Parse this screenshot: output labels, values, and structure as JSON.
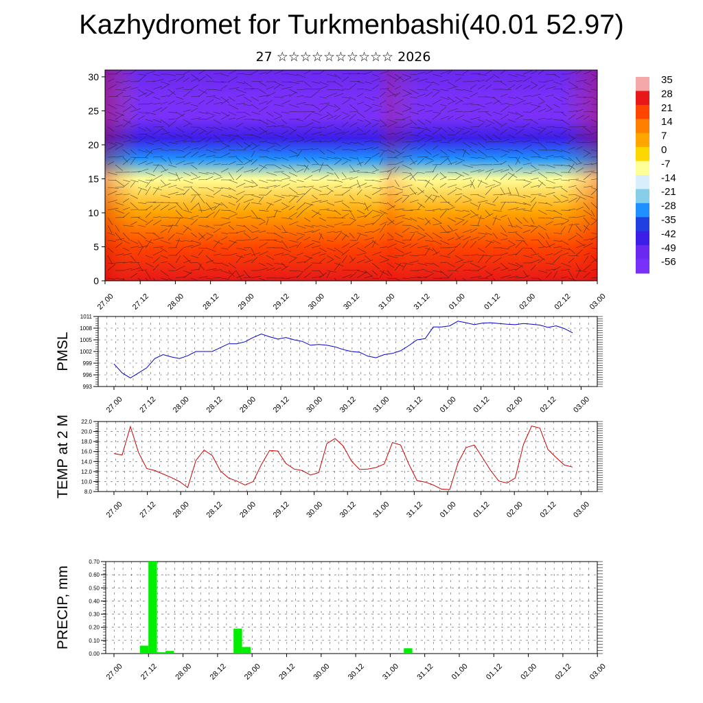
{
  "header": {
    "title": "Kazhydromet for Turkmenbashi(40.01 52.97)",
    "subtitle": "27 ☆☆☆☆☆☆☆☆☆☆ 2026"
  },
  "colors": {
    "pmsl_line": "#0000cc",
    "temp_line": "#cc0000",
    "precip_bar": "#00ee00",
    "grid": "#555555"
  },
  "chart_data": [
    {
      "type": "heatmap",
      "name": "upper-air-temperature-wind",
      "title": "",
      "ylabel": "",
      "x_tick_labels": [
        "27.00",
        "27.12",
        "28.00",
        "28.12",
        "29.00",
        "29.12",
        "30.00",
        "30.12",
        "31.00",
        "31.12",
        "01.00",
        "01.12",
        "02.00",
        "02.12",
        "03.00"
      ],
      "y_ticks": [
        0,
        5,
        10,
        15,
        20,
        25,
        30
      ],
      "ylim": [
        0,
        31
      ],
      "colorbar_labels": [
        "35",
        "28",
        "21",
        "14",
        "7",
        "0",
        "-7",
        "-14",
        "-21",
        "-28",
        "-35",
        "-42",
        "-49",
        "-56"
      ],
      "colorbar_colors": [
        "#f4a8a8",
        "#e81818",
        "#ff4500",
        "#ff7f00",
        "#ffa500",
        "#ffd700",
        "#ffff99",
        "#d8eefc",
        "#87ceeb",
        "#1e90ff",
        "#2040e0",
        "#3c1ee8",
        "#6a28f0",
        "#7a30f8"
      ],
      "vertical_profile": [
        {
          "level": 0,
          "value": 24
        },
        {
          "level": 5,
          "value": 18
        },
        {
          "level": 10,
          "value": 8
        },
        {
          "level": 15,
          "value": -8
        },
        {
          "level": 18,
          "value": -32
        },
        {
          "level": 21,
          "value": -48
        },
        {
          "level": 24,
          "value": -62
        },
        {
          "level": 27,
          "value": -60
        },
        {
          "level": 31,
          "value": -56
        }
      ]
    },
    {
      "type": "line",
      "name": "pmsl",
      "ylabel": "PMSL",
      "x_tick_labels": [
        "27.00",
        "27.12",
        "28.00",
        "28.12",
        "29.00",
        "29.12",
        "30.00",
        "30.12",
        "31.00",
        "31.12",
        "01.00",
        "01.12",
        "02.00",
        "02.12",
        "03.00"
      ],
      "y_tick_labels": [
        "1011",
        "1008",
        "1005",
        "1002",
        "999",
        "996",
        "993"
      ],
      "ylim": [
        993,
        1011
      ],
      "series": [
        {
          "name": "PMSL",
          "values": [
            998.8,
            996.5,
            995.2,
            996.5,
            997.8,
            1000.2,
            1001.2,
            1000.6,
            1000.2,
            1000.9,
            1002.0,
            1002.0,
            1002.0,
            1003.0,
            1004.0,
            1004.0,
            1004.5,
            1005.6,
            1006.5,
            1005.8,
            1005.2,
            1005.6,
            1005.0,
            1004.6,
            1003.6,
            1003.8,
            1003.6,
            1003.2,
            1002.5,
            1002.0,
            1001.8,
            1000.8,
            1000.4,
            1001.2,
            1001.5,
            1002.2,
            1003.5,
            1005.0,
            1005.3,
            1008.3,
            1008.3,
            1008.6,
            1009.8,
            1009.4,
            1008.9,
            1009.3,
            1009.4,
            1009.2,
            1009.0,
            1008.9,
            1009.2,
            1009.0,
            1008.8,
            1008.2,
            1008.6,
            1007.9,
            1006.8
          ]
        }
      ]
    },
    {
      "type": "line",
      "name": "temp-2m",
      "ylabel": "TEMP at 2 M",
      "x_tick_labels": [
        "27.00",
        "27.12",
        "28.00",
        "28.12",
        "29.00",
        "29.12",
        "30.00",
        "30.12",
        "31.00",
        "31.12",
        "01.00",
        "01.12",
        "02.00",
        "02.12",
        "03.00"
      ],
      "y_tick_labels": [
        "22.0",
        "20.0",
        "18.0",
        "16.0",
        "14.0",
        "12.0",
        "10.0",
        "8.0"
      ],
      "ylim": [
        8,
        22
      ],
      "series": [
        {
          "name": "TEMP",
          "values": [
            15.6,
            15.3,
            21.0,
            15.8,
            12.6,
            12.2,
            11.5,
            10.8,
            10.0,
            8.8,
            14.2,
            16.3,
            15.2,
            12.1,
            10.7,
            10.1,
            9.3,
            10.0,
            13.4,
            16.2,
            16.1,
            13.6,
            12.5,
            12.2,
            11.3,
            11.8,
            17.6,
            18.6,
            17.1,
            14.1,
            12.4,
            12.5,
            12.8,
            13.5,
            17.8,
            17.3,
            13.5,
            10.2,
            9.9,
            9.3,
            8.5,
            8.4,
            13.7,
            16.8,
            17.3,
            14.8,
            12.2,
            10.1,
            9.7,
            10.7,
            17.4,
            21.1,
            20.7,
            16.4,
            14.8,
            13.3,
            12.9
          ]
        }
      ]
    },
    {
      "type": "bar",
      "name": "precip",
      "ylabel": "PRECIP, mm",
      "x_tick_labels": [
        "27.00",
        "27.12",
        "28.00",
        "28.12",
        "29.00",
        "29.12",
        "30.00",
        "30.12",
        "31.00",
        "31.12",
        "01.00",
        "01.12",
        "02.00",
        "02.12",
        "03.00"
      ],
      "y_tick_labels": [
        "0.70",
        "0.60",
        "0.50",
        "0.40",
        "0.30",
        "0.20",
        "0.10",
        "0.00"
      ],
      "ylim": [
        0,
        0.7
      ],
      "values": [
        0,
        0,
        0,
        0.06,
        0.7,
        0.01,
        0.02,
        0,
        0,
        0,
        0,
        0,
        0,
        0,
        0.19,
        0.05,
        0,
        0,
        0,
        0,
        0,
        0,
        0,
        0,
        0,
        0,
        0,
        0,
        0,
        0,
        0,
        0,
        0,
        0,
        0.04,
        0,
        0,
        0,
        0,
        0,
        0,
        0,
        0,
        0,
        0,
        0,
        0,
        0,
        0,
        0,
        0,
        0,
        0,
        0,
        0,
        0,
        0,
        0
      ]
    }
  ]
}
